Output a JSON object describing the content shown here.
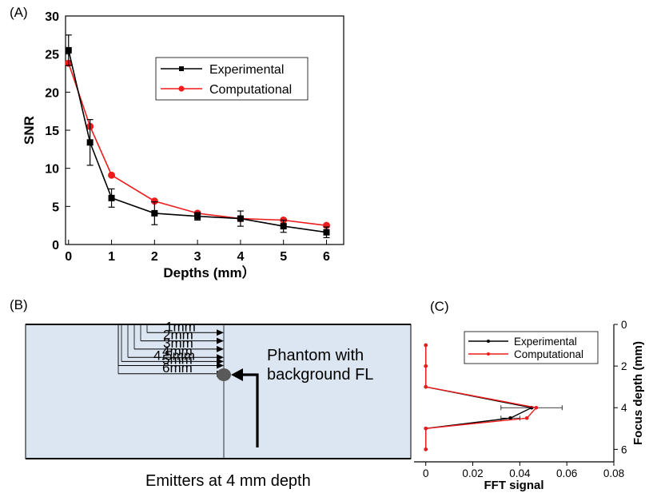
{
  "panels": {
    "a_label": "(A)",
    "b_label": "(B)",
    "c_label": "(C)"
  },
  "colors": {
    "experimental": "#000000",
    "computational": "#ee1c1c",
    "phantom_fill": "#dce6f2",
    "emitter_fill": "#595959"
  },
  "chart_data": [
    {
      "type": "line",
      "title": "",
      "xlabel": "Depths (mm）",
      "ylabel": "SNR",
      "x": [
        0,
        0.5,
        1,
        2,
        3,
        4,
        5,
        6
      ],
      "xticks": [
        0,
        1,
        2,
        3,
        4,
        5,
        6
      ],
      "yticks": [
        0,
        5,
        10,
        15,
        20,
        25,
        30
      ],
      "xlim": [
        -0.07,
        6.4
      ],
      "ylim": [
        0,
        30
      ],
      "grid": false,
      "legend": "top-right",
      "series": [
        {
          "name": "Experimental",
          "color": "#000000",
          "marker": "square",
          "values": [
            25.5,
            13.4,
            6.1,
            4.1,
            3.7,
            3.4,
            2.4,
            1.6
          ],
          "errors": [
            2.0,
            3.0,
            1.2,
            1.5,
            0.5,
            1.0,
            0.8,
            0.7
          ]
        },
        {
          "name": "Computational",
          "color": "#ee1c1c",
          "marker": "circle",
          "values": [
            23.8,
            15.5,
            9.1,
            5.7,
            4.1,
            3.4,
            3.2,
            2.5
          ],
          "errors": []
        }
      ]
    },
    {
      "type": "line",
      "title": "",
      "xlabel": "FFT signal",
      "ylabel": "Focus depth (mm)",
      "orientation": "horizontal",
      "y": [
        1,
        2,
        3,
        4,
        4.5,
        5,
        6
      ],
      "xticks": [
        0,
        0.02,
        0.04,
        0.06,
        0.08
      ],
      "yticks": [
        0,
        2,
        4,
        6
      ],
      "xlim": [
        -0.005,
        0.08
      ],
      "ylim": [
        0,
        6.6
      ],
      "y_inverted": true,
      "grid": false,
      "legend": "top-right",
      "series": [
        {
          "name": "Experimental",
          "color": "#000000",
          "values": [
            0,
            0,
            0,
            0.045,
            0.036,
            0,
            0
          ],
          "errors": [
            0,
            0,
            0,
            0.013,
            0.004,
            0,
            0
          ]
        },
        {
          "name": "Computational",
          "color": "#ee1c1c",
          "values": [
            0,
            0,
            0,
            0.047,
            0.043,
            0,
            0
          ],
          "errors": []
        }
      ]
    }
  ],
  "diagram": {
    "depth_labels": [
      "1mm",
      "2mm",
      "3mm",
      "4mm",
      "4.5mm",
      "5mm",
      "6mm"
    ],
    "depths_mm": [
      1,
      2,
      3,
      4,
      4.5,
      5,
      6
    ],
    "phantom_text_1": "Phantom with",
    "phantom_text_2": "background FL",
    "emitter_caption": "Emitters at  4  mm depth"
  }
}
